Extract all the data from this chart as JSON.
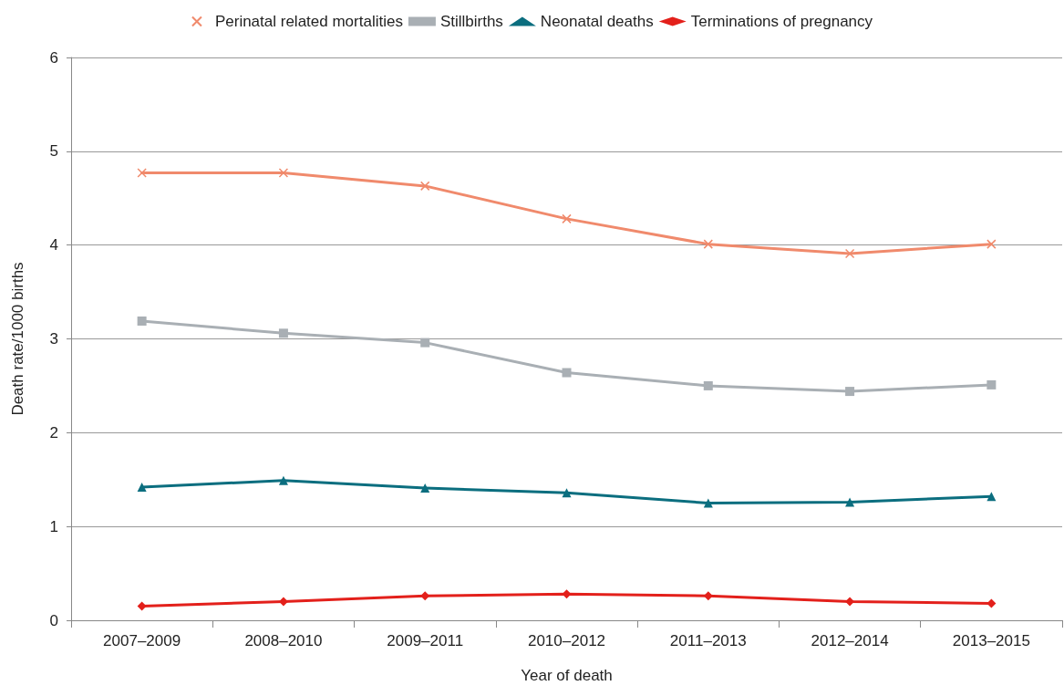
{
  "chart_data": {
    "type": "line",
    "xlabel": "Year of death",
    "ylabel": "Death rate/1000 births",
    "categories": [
      "2007–2009",
      "2008–2010",
      "2009–2011",
      "2010–2012",
      "2011–2013",
      "2012–2014",
      "2013–2015"
    ],
    "series": [
      {
        "name": "Perinatal related mortalities",
        "color": "#f08a6c",
        "marker": "cross",
        "values": [
          4.77,
          4.77,
          4.63,
          4.28,
          4.01,
          3.91,
          4.01
        ]
      },
      {
        "name": "Stillbirths",
        "color": "#a9afb4",
        "marker": "square",
        "values": [
          3.19,
          3.06,
          2.96,
          2.64,
          2.5,
          2.44,
          2.51
        ]
      },
      {
        "name": "Neonatal deaths",
        "color": "#0b6e7f",
        "marker": "triangle",
        "values": [
          1.42,
          1.49,
          1.41,
          1.36,
          1.25,
          1.26,
          1.32
        ]
      },
      {
        "name": "Terminations of pregnancy",
        "color": "#e3201b",
        "marker": "diamond",
        "values": [
          0.15,
          0.2,
          0.26,
          0.28,
          0.26,
          0.2,
          0.18
        ]
      }
    ],
    "ylim": [
      0,
      6
    ],
    "yticks": [
      0,
      1,
      2,
      3,
      4,
      5,
      6
    ],
    "grid": "y",
    "legend": "top",
    "line_style": "solid"
  }
}
